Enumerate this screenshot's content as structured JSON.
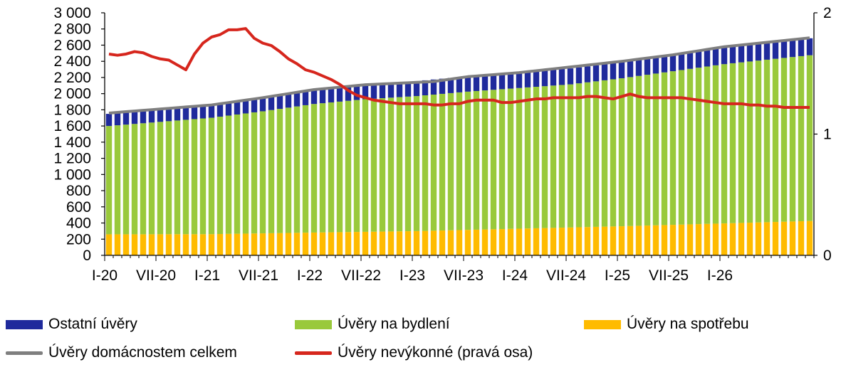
{
  "chart_data": {
    "type": "bar",
    "stacked": true,
    "x_tick_labels": [
      "I-20",
      "VII-20",
      "I-21",
      "VII-21",
      "I-22",
      "VII-22",
      "I-23",
      "VII-23",
      "I-24",
      "VII-24",
      "I-25",
      "VII-25",
      "I-26"
    ],
    "x_tick_months": [
      0,
      6,
      12,
      18,
      24,
      30,
      36,
      42,
      48,
      54,
      60,
      66,
      72
    ],
    "months_count": 83,
    "y_left": {
      "ticks": [
        "3 000",
        "2 800",
        "2 600",
        "2 400",
        "2 200",
        "2 000",
        "1 800",
        "1 600",
        "1 400",
        "1 200",
        "1 000",
        "800",
        "600",
        "400",
        "200",
        "0"
      ],
      "range": [
        0,
        3000
      ]
    },
    "y_right": {
      "ticks": [
        "2",
        "1",
        "0"
      ],
      "range": [
        0,
        2
      ]
    },
    "colors": {
      "ostatni": "#1f2a9c",
      "bydleni": "#99c93b",
      "spotreba": "#ffbb00",
      "celkem": "#7f7f7f",
      "nevykonne": "#d6261d"
    },
    "series": [
      {
        "name": "Ostatní úvěry",
        "kind": "bar",
        "color_key": "ostatni",
        "anchors": [
          [
            0,
            150
          ],
          [
            12,
            150
          ],
          [
            24,
            170
          ],
          [
            36,
            185
          ],
          [
            48,
            195
          ],
          [
            60,
            200
          ],
          [
            72,
            210
          ],
          [
            82,
            210
          ]
        ]
      },
      {
        "name": "Úvěry na bydlení",
        "kind": "bar",
        "color_key": "bydleni",
        "anchors": [
          [
            0,
            1340
          ],
          [
            6,
            1390
          ],
          [
            12,
            1440
          ],
          [
            18,
            1510
          ],
          [
            24,
            1590
          ],
          [
            30,
            1640
          ],
          [
            36,
            1670
          ],
          [
            42,
            1710
          ],
          [
            48,
            1740
          ],
          [
            54,
            1770
          ],
          [
            60,
            1830
          ],
          [
            66,
            1900
          ],
          [
            72,
            1970
          ],
          [
            82,
            2050
          ]
        ]
      },
      {
        "name": "Úvěry na spotřebu",
        "kind": "bar",
        "color_key": "spotreba",
        "anchors": [
          [
            0,
            260
          ],
          [
            12,
            262
          ],
          [
            24,
            282
          ],
          [
            36,
            300
          ],
          [
            48,
            330
          ],
          [
            60,
            360
          ],
          [
            72,
            395
          ],
          [
            82,
            425
          ]
        ]
      },
      {
        "name": "Úvěry domácnostem celkem",
        "kind": "line",
        "axis": "left",
        "color_key": "celkem",
        "anchors": [
          [
            0,
            1760
          ],
          [
            6,
            1810
          ],
          [
            12,
            1860
          ],
          [
            18,
            1950
          ],
          [
            24,
            2050
          ],
          [
            30,
            2110
          ],
          [
            36,
            2140
          ],
          [
            38,
            2150
          ],
          [
            42,
            2210
          ],
          [
            48,
            2260
          ],
          [
            54,
            2330
          ],
          [
            60,
            2400
          ],
          [
            66,
            2480
          ],
          [
            72,
            2580
          ],
          [
            82,
            2690
          ]
        ]
      },
      {
        "name": "Úvěry nevýkonné (pravá osa)",
        "kind": "line",
        "axis": "right",
        "color_key": "nevykonne",
        "values": [
          1.66,
          1.65,
          1.66,
          1.68,
          1.67,
          1.64,
          1.62,
          1.61,
          1.57,
          1.53,
          1.66,
          1.75,
          1.8,
          1.82,
          1.86,
          1.86,
          1.87,
          1.79,
          1.75,
          1.73,
          1.68,
          1.62,
          1.58,
          1.53,
          1.51,
          1.48,
          1.45,
          1.41,
          1.36,
          1.32,
          1.3,
          1.28,
          1.27,
          1.26,
          1.25,
          1.25,
          1.25,
          1.25,
          1.24,
          1.24,
          1.25,
          1.25,
          1.27,
          1.28,
          1.28,
          1.28,
          1.26,
          1.26,
          1.27,
          1.28,
          1.29,
          1.29,
          1.3,
          1.3,
          1.3,
          1.3,
          1.31,
          1.31,
          1.3,
          1.29,
          1.31,
          1.33,
          1.31,
          1.3,
          1.3,
          1.3,
          1.3,
          1.3,
          1.29,
          1.28,
          1.27,
          1.26,
          1.25,
          1.25,
          1.25,
          1.24,
          1.24,
          1.23,
          1.23,
          1.22,
          1.22,
          1.22,
          1.22
        ]
      }
    ],
    "legend": [
      {
        "label": "Ostatní úvěry",
        "kind": "swatch",
        "color_key": "ostatni"
      },
      {
        "label": "Úvěry na bydlení",
        "kind": "swatch",
        "color_key": "bydleni"
      },
      {
        "label": "Úvěry na spotřebu",
        "kind": "swatch",
        "color_key": "spotreba"
      },
      {
        "label": "Úvěry domácnostem celkem",
        "kind": "line",
        "color_key": "celkem"
      },
      {
        "label": "Úvěry nevýkonné (pravá osa)",
        "kind": "line",
        "color_key": "nevykonne"
      }
    ]
  }
}
